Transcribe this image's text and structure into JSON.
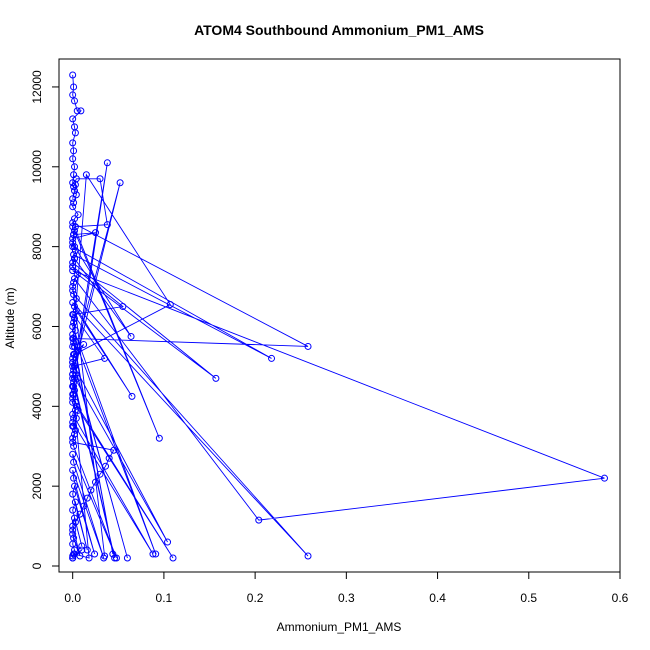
{
  "chart_data": {
    "type": "line",
    "title": "ATOM4 Southbound Ammonium_PM1_AMS",
    "xlabel": "Ammonium_PM1_AMS",
    "ylabel": "Altitude (m)",
    "xlim": [
      -0.015,
      0.6
    ],
    "ylim": [
      -150,
      12700
    ],
    "xticks": [
      0.0,
      0.1,
      0.2,
      0.3,
      0.4,
      0.5,
      0.6
    ],
    "xtick_labels": [
      "0.0",
      "0.1",
      "0.2",
      "0.3",
      "0.4",
      "0.5",
      "0.6"
    ],
    "yticks": [
      0,
      2000,
      4000,
      6000,
      8000,
      10000,
      12000
    ],
    "ytick_labels": [
      "0",
      "2000",
      "4000",
      "6000",
      "8000",
      "10000",
      "12000"
    ],
    "grid": false,
    "legend": "none",
    "line_color": "#0000ff",
    "marker": "open-circle",
    "series": [
      {
        "x": [
          0.0,
          0.001,
          0.002,
          0.0,
          0.001,
          0.0,
          0.003,
          0.008,
          0.012,
          0.016,
          0.02,
          0.025,
          0.03,
          0.036,
          0.04,
          0.045,
          0.0,
          0.002,
          0.001,
          0.004,
          0.006,
          0.003,
          0.0,
          0.001,
          0.038,
          0.0,
          0.001,
          0.052,
          0.0,
          0.002,
          0.107,
          0.015,
          0.0,
          0.001,
          0.258,
          0.0,
          0.095,
          0.002,
          0.0,
          0.218,
          0.001,
          0.0,
          0.157,
          0.0,
          0.583,
          0.204,
          0.002,
          0.0,
          0.035,
          0.001,
          0.258,
          0.0,
          0.065,
          0.004,
          0.002,
          0.0,
          0.091,
          0.0,
          0.044,
          0.001,
          0.005,
          0.0,
          0.06,
          0.002,
          0.104,
          0.0,
          0.046,
          0.001,
          0.002,
          0.0,
          0.11,
          0.004,
          0.0,
          0.088,
          0.0,
          0.003,
          0.0,
          0.001,
          0.048,
          0.0,
          0.001,
          0.034,
          0.0,
          0.001,
          0.024,
          0.002,
          0.0,
          0.016,
          0.003,
          0.0,
          0.01,
          0.002,
          0.0,
          0.008,
          0.0
        ],
        "y": [
          200,
          300,
          400,
          550,
          700,
          900,
          1100,
          1300,
          1500,
          1700,
          1900,
          2100,
          2300,
          2500,
          2700,
          2900,
          3100,
          3300,
          3500,
          3700,
          3900,
          4100,
          4300,
          4500,
          10100,
          4700,
          4900,
          9600,
          5100,
          5300,
          6550,
          9800,
          5500,
          5700,
          5500,
          8600,
          3200,
          8400,
          8000,
          5200,
          7800,
          7600,
          4700,
          7400,
          2200,
          1150,
          7200,
          7000,
          250,
          6800,
          250,
          6600,
          4250,
          6400,
          6200,
          6000,
          300,
          5800,
          300,
          5600,
          5400,
          5200,
          200,
          5000,
          600,
          4800,
          200,
          4600,
          4400,
          4200,
          200,
          4000,
          3800,
          300,
          3600,
          3400,
          3200,
          3000,
          200,
          2800,
          2600,
          200,
          2400,
          2200,
          300,
          2000,
          1800,
          400,
          1600,
          1400,
          500,
          1200,
          1000,
          250,
          800
        ]
      },
      {
        "x": [
          0.0,
          0.001,
          0.0,
          0.002,
          0.005,
          0.009,
          0.0,
          0.002,
          0.003,
          0.0,
          0.001,
          0.0,
          0.002,
          0.001,
          0.0,
          0.003,
          0.004,
          0.001,
          0.0,
          0.006,
          0.002,
          0.0,
          0.001,
          0.0,
          0.003,
          0.002,
          0.0,
          0.005,
          0.001,
          0.0,
          0.004,
          0.002,
          0.0,
          0.001,
          0.003,
          0.0,
          0.002,
          0.001,
          0.0,
          0.004,
          0.002,
          0.0,
          0.001,
          0.0,
          0.003,
          0.001,
          0.0
        ],
        "y": [
          12300,
          12000,
          11800,
          11650,
          11400,
          11400,
          11200,
          11000,
          10850,
          10600,
          10400,
          10200,
          10000,
          9800,
          9600,
          9550,
          9300,
          9100,
          9000,
          8800,
          8700,
          8500,
          8300,
          8100,
          7900,
          7700,
          7500,
          7300,
          7100,
          6900,
          6700,
          6500,
          6300,
          6100,
          5900,
          5700,
          5500,
          5300,
          5100,
          4900,
          4700,
          4500,
          4300,
          4100,
          3900,
          3700,
          3500
        ]
      },
      {
        "x": [
          0.0,
          0.002,
          0.001,
          0.004,
          0.03,
          0.038,
          0.003,
          0.001,
          0.025,
          0.0,
          0.002,
          0.064,
          0.002,
          0.0,
          0.055,
          0.001,
          0.035,
          0.0,
          0.012,
          0.001,
          0.0,
          0.005,
          0.0,
          0.018,
          0.002,
          0.0,
          0.01,
          0.0
        ],
        "y": [
          9200,
          9400,
          9500,
          9700,
          9700,
          8550,
          8500,
          8300,
          8350,
          8200,
          8000,
          5750,
          7700,
          7500,
          6500,
          6300,
          5200,
          5000,
          5550,
          5300,
          4800,
          4700,
          4500,
          200,
          300,
          250,
          400,
          200
        ]
      }
    ]
  }
}
